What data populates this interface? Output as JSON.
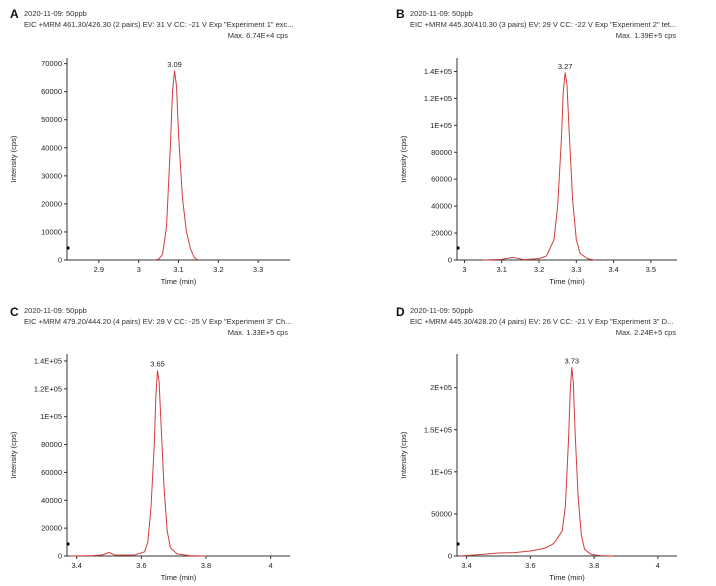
{
  "chart_data": [
    {
      "id": "A",
      "type": "line",
      "panel_label": "A",
      "header1": "2020-11-09: 50ppb",
      "header2": "EIC +MRM 461.30/426.30 (2 pairs) EV: 31 V CC: -21 V Exp \"Experiment 1\" exc...",
      "max_label": "Max. 6.74E+4 cps",
      "xlabel": "Time (min)",
      "ylabel": "Intensity (cps)",
      "xlim": [
        2.82,
        3.38
      ],
      "ylim": [
        0,
        72000
      ],
      "xticks": [
        2.9,
        3.0,
        3.1,
        3.2,
        3.3
      ],
      "xtick_labels": [
        "2.9",
        "3",
        "3.1",
        "3.2",
        "3.3"
      ],
      "yticks": [
        0,
        10000,
        20000,
        30000,
        40000,
        50000,
        60000,
        70000
      ],
      "ytick_labels": [
        "0",
        "10000",
        "20000",
        "30000",
        "40000",
        "50000",
        "60000",
        "70000"
      ],
      "peak_label": "3.09",
      "peak": {
        "x": 3.09,
        "y": 67400
      },
      "x": [
        3.04,
        3.05,
        3.06,
        3.07,
        3.08,
        3.085,
        3.09,
        3.095,
        3.1,
        3.11,
        3.12,
        3.13,
        3.14,
        3.15
      ],
      "y": [
        0,
        300,
        2000,
        12000,
        42000,
        60000,
        67400,
        62000,
        45000,
        22000,
        10000,
        4000,
        800,
        0
      ]
    },
    {
      "id": "B",
      "type": "line",
      "panel_label": "B",
      "header1": "2020-11-09: 50ppb",
      "header2": "EIC +MRM 445.30/410.30 (3 pairs) EV: 29 V CC: -22 V Exp \"Experiment 2\" tet...",
      "max_label": "Max. 1.39E+5 cps",
      "xlabel": "Time (min)",
      "ylabel": "Intensity (cps)",
      "xlim": [
        2.98,
        3.57
      ],
      "ylim": [
        0,
        150000
      ],
      "xticks": [
        3.0,
        3.1,
        3.2,
        3.3,
        3.4,
        3.5
      ],
      "xtick_labels": [
        "3",
        "3.1",
        "3.2",
        "3.3",
        "3.4",
        "3.5"
      ],
      "yticks": [
        0,
        20000,
        40000,
        60000,
        80000,
        100000,
        120000,
        140000
      ],
      "ytick_labels": [
        "0",
        "20000",
        "40000",
        "60000",
        "80000",
        "1E+05",
        "1.2E+05",
        "1.4E+05"
      ],
      "peak_label": "3.27",
      "peak": {
        "x": 3.27,
        "y": 139000
      },
      "x": [
        3.05,
        3.1,
        3.13,
        3.16,
        3.2,
        3.22,
        3.24,
        3.25,
        3.26,
        3.265,
        3.27,
        3.275,
        3.28,
        3.29,
        3.3,
        3.31,
        3.33,
        3.35
      ],
      "y": [
        0,
        500,
        2000,
        300,
        1000,
        3000,
        15000,
        40000,
        90000,
        125000,
        139000,
        130000,
        100000,
        45000,
        15000,
        5000,
        1000,
        0
      ]
    },
    {
      "id": "C",
      "type": "line",
      "panel_label": "C",
      "header1": "2020-11-09: 50ppb",
      "header2": "EIC +MRM 479.20/444.20 (4 pairs) EV: 29 V CC: -25 V Exp \"Experiment 3\" Ch...",
      "max_label": "Max. 1.33E+5 cps",
      "xlabel": "Time (min)",
      "ylabel": "Intensity (cps)",
      "xlim": [
        3.37,
        4.06
      ],
      "ylim": [
        0,
        145000
      ],
      "xticks": [
        3.4,
        3.6,
        3.8,
        4.0
      ],
      "xtick_labels": [
        "3.4",
        "3.6",
        "3.8",
        "4"
      ],
      "yticks": [
        0,
        20000,
        40000,
        60000,
        80000,
        100000,
        120000,
        140000
      ],
      "ytick_labels": [
        "0",
        "20000",
        "40000",
        "60000",
        "80000",
        "1E+05",
        "1.2E+05",
        "1.4E+05"
      ],
      "peak_label": "3.65",
      "peak": {
        "x": 3.65,
        "y": 133000
      },
      "x": [
        3.38,
        3.45,
        3.48,
        3.5,
        3.52,
        3.58,
        3.61,
        3.62,
        3.63,
        3.64,
        3.645,
        3.65,
        3.655,
        3.66,
        3.67,
        3.68,
        3.69,
        3.71,
        3.75,
        3.8
      ],
      "y": [
        0,
        300,
        800,
        2500,
        600,
        800,
        3000,
        10000,
        35000,
        80000,
        115000,
        133000,
        125000,
        100000,
        50000,
        18000,
        6000,
        1500,
        300,
        0
      ]
    },
    {
      "id": "D",
      "type": "line",
      "panel_label": "D",
      "header1": "2020-11-09: 50ppb",
      "header2": "EIC +MRM 445.30/428.20 (4 pairs) EV: 26 V CC: -21 V Exp \"Experiment 3\" D...",
      "max_label": "Max. 2.24E+5 cps",
      "xlabel": "Time (min)",
      "ylabel": "Intensity (cps)",
      "xlim": [
        3.37,
        4.06
      ],
      "ylim": [
        0,
        240000
      ],
      "xticks": [
        3.4,
        3.6,
        3.8,
        4.0
      ],
      "xtick_labels": [
        "3.4",
        "3.6",
        "3.8",
        "4"
      ],
      "yticks": [
        0,
        50000,
        100000,
        150000,
        200000
      ],
      "ytick_labels": [
        "0",
        "50000",
        "1E+05",
        "1.5E+05",
        "2E+05"
      ],
      "peak_label": "3.73",
      "peak": {
        "x": 3.73,
        "y": 224000
      },
      "x": [
        3.38,
        3.45,
        3.5,
        3.55,
        3.6,
        3.63,
        3.65,
        3.67,
        3.68,
        3.69,
        3.7,
        3.71,
        3.72,
        3.725,
        3.73,
        3.735,
        3.74,
        3.75,
        3.76,
        3.77,
        3.79,
        3.82,
        3.86
      ],
      "y": [
        0,
        2000,
        3500,
        4000,
        6000,
        8000,
        10000,
        14000,
        18000,
        24000,
        30000,
        60000,
        140000,
        195000,
        224000,
        205000,
        150000,
        70000,
        25000,
        8000,
        2000,
        500,
        0
      ]
    }
  ]
}
